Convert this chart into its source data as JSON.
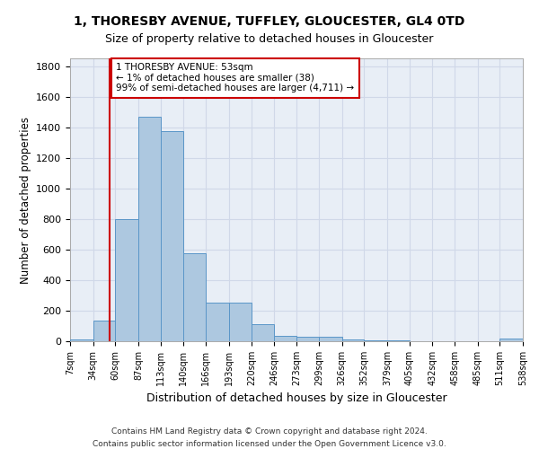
{
  "title1": "1, THORESBY AVENUE, TUFFLEY, GLOUCESTER, GL4 0TD",
  "title2": "Size of property relative to detached houses in Gloucester",
  "xlabel": "Distribution of detached houses by size in Gloucester",
  "ylabel": "Number of detached properties",
  "bin_edges": [
    7,
    34,
    60,
    87,
    113,
    140,
    166,
    193,
    220,
    246,
    273,
    299,
    326,
    352,
    379,
    405,
    432,
    458,
    485,
    511,
    538
  ],
  "bar_heights": [
    10,
    135,
    800,
    1470,
    1375,
    575,
    255,
    255,
    110,
    38,
    30,
    27,
    14,
    5,
    5,
    2,
    0,
    0,
    0,
    20
  ],
  "bar_color": "#adc8e0",
  "bar_edge_color": "#5a96c8",
  "property_size": 53,
  "property_line_color": "#cc0000",
  "annotation_text": "1 THORESBY AVENUE: 53sqm\n← 1% of detached houses are smaller (38)\n99% of semi-detached houses are larger (4,711) →",
  "annotation_box_color": "#cc0000",
  "grid_color": "#d0d8e8",
  "background_color": "#e8eef6",
  "fig_background_color": "#ffffff",
  "footnote1": "Contains HM Land Registry data © Crown copyright and database right 2024.",
  "footnote2": "Contains public sector information licensed under the Open Government Licence v3.0.",
  "ylim": [
    0,
    1850
  ],
  "yticks": [
    0,
    200,
    400,
    600,
    800,
    1000,
    1200,
    1400,
    1600,
    1800
  ]
}
